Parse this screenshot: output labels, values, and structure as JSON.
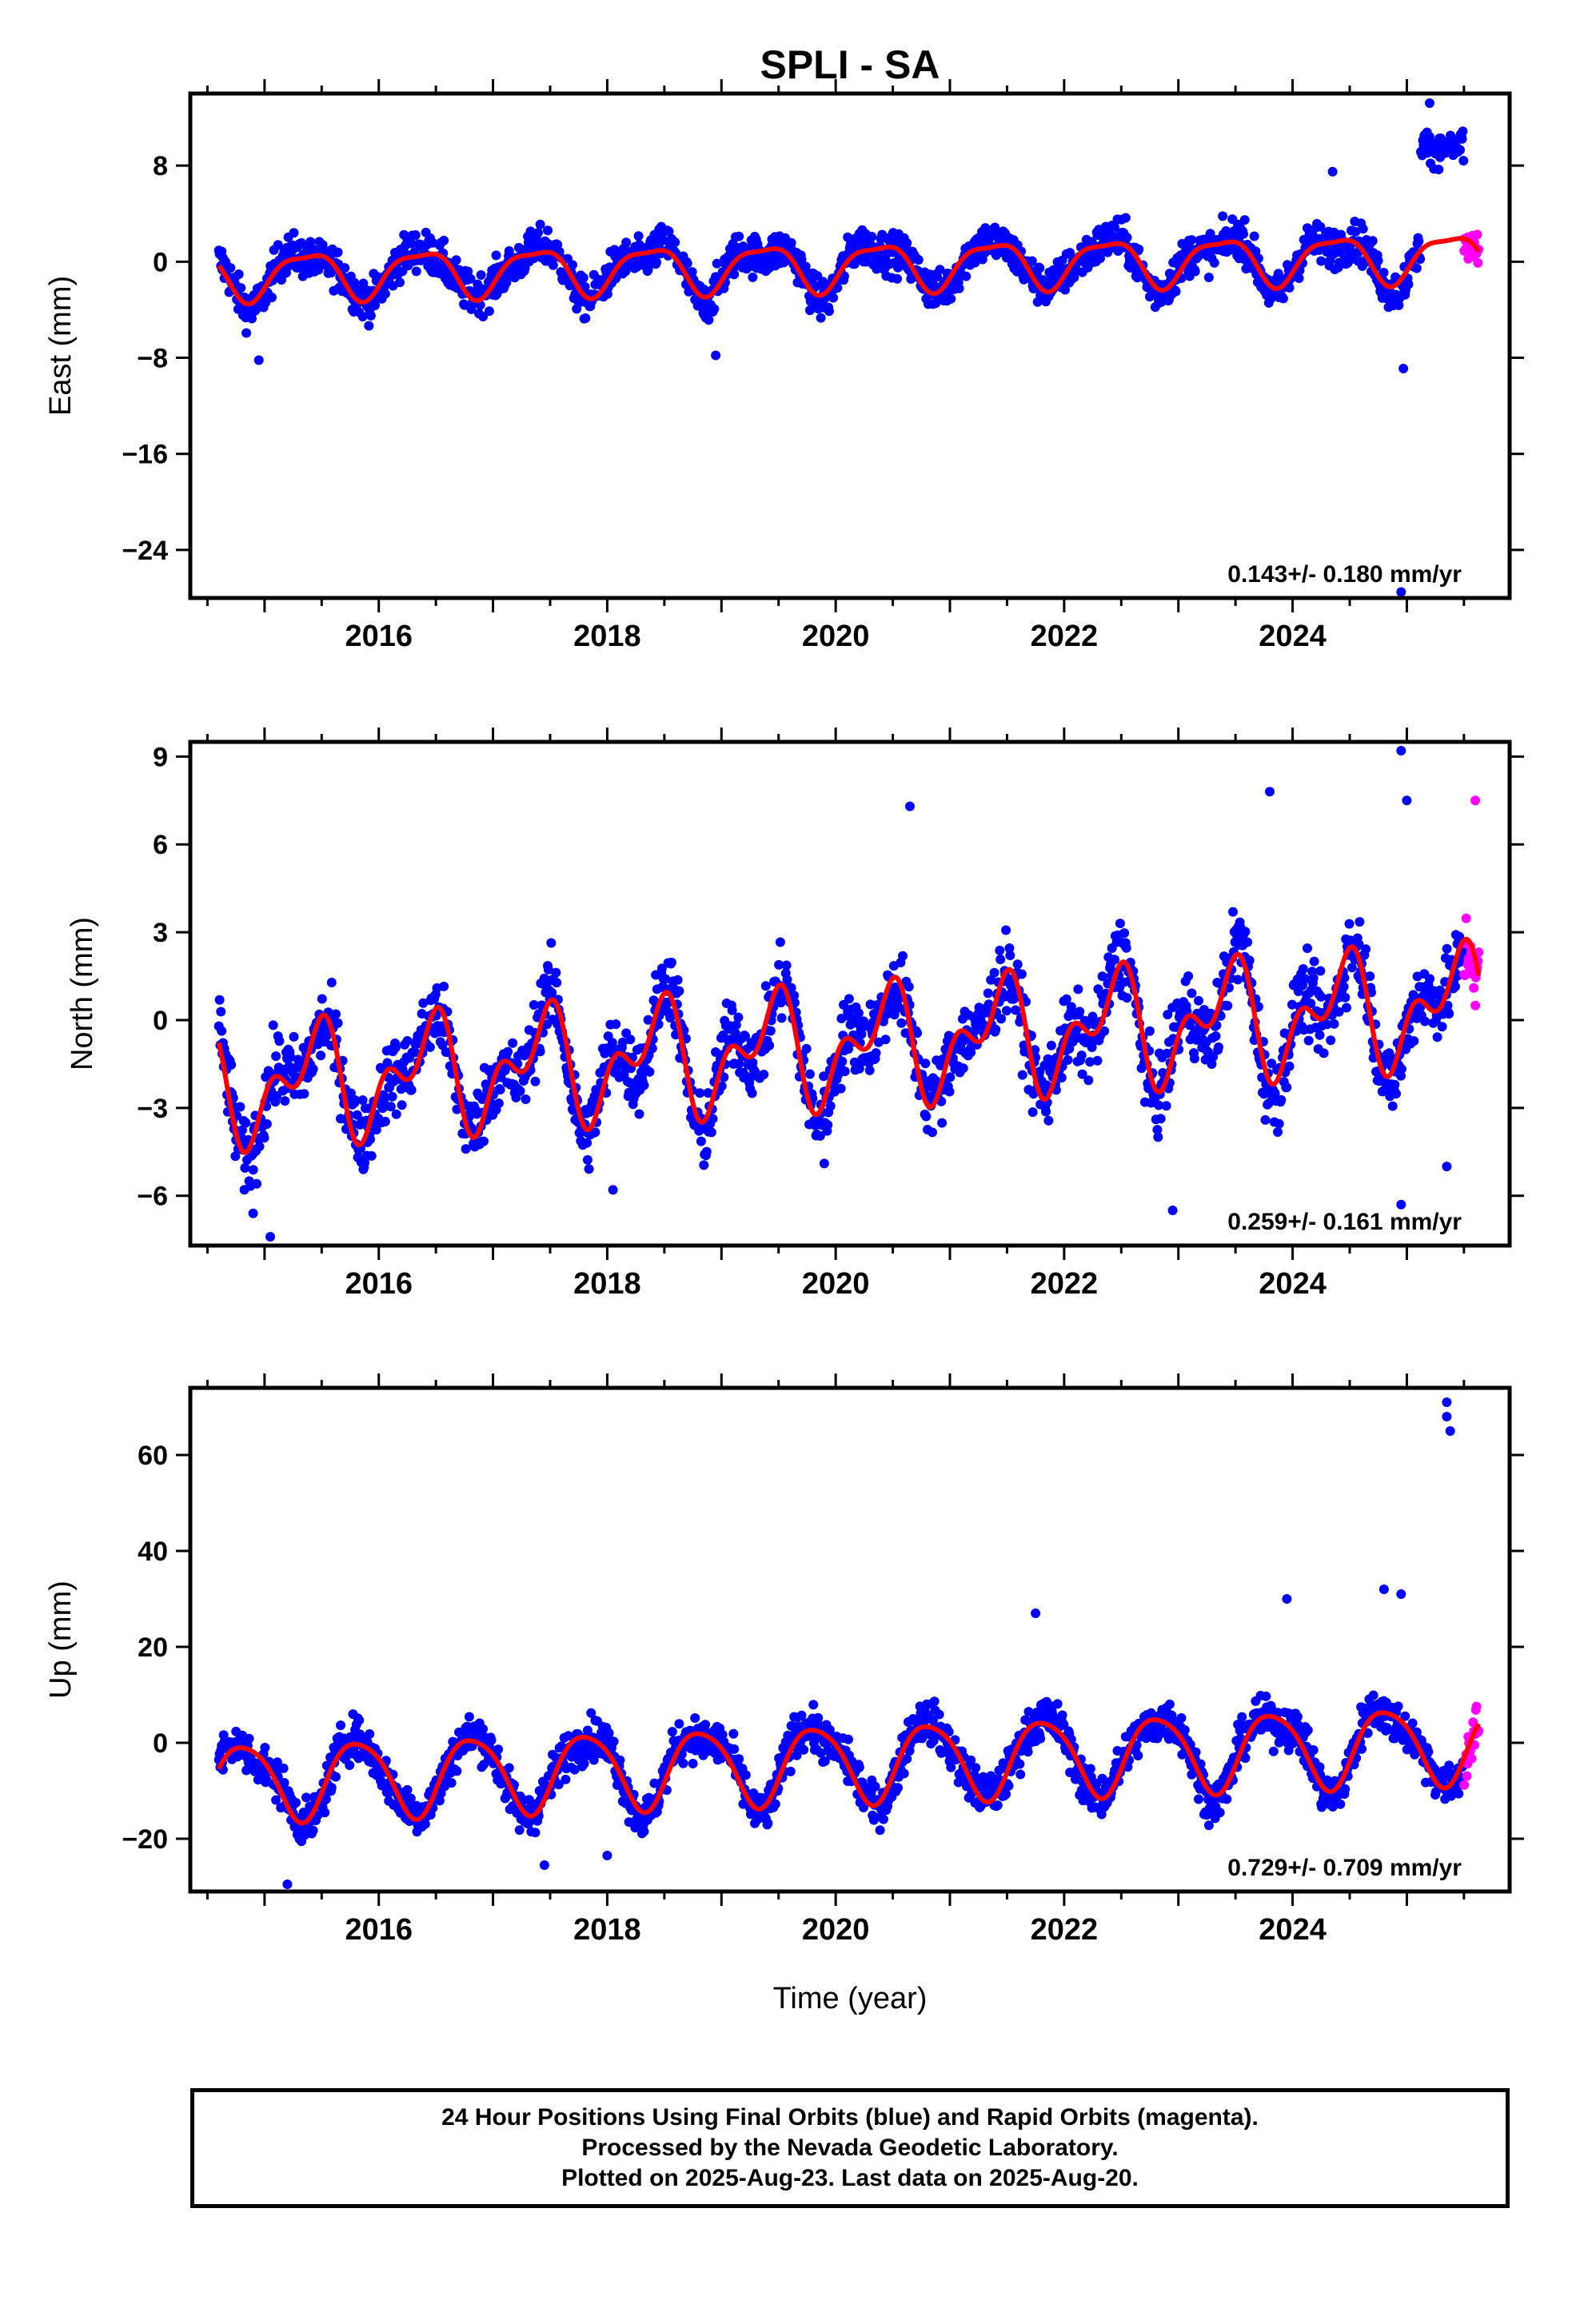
{
  "title": "SPLI - SA",
  "colors": {
    "final": "#0000ff",
    "rapid": "#ff00ff",
    "model": "#ff0000",
    "axis": "#000000"
  },
  "xaxis": {
    "label": "Time (year)",
    "range": [
      2014.35,
      2025.9
    ],
    "ticks": [
      2016,
      2018,
      2020,
      2022,
      2024
    ],
    "tick_labels": [
      "2016",
      "2018",
      "2020",
      "2022",
      "2024"
    ]
  },
  "caption": {
    "line1": "24 Hour Positions Using Final Orbits (blue) and Rapid Orbits (magenta).",
    "line2": "Processed by the Nevada Geodetic Laboratory.",
    "line3": "Plotted on 2025-Aug-23. Last data on 2025-Aug-20."
  },
  "chart_data": [
    {
      "type": "scatter",
      "ylabel": "East (mm)",
      "ylim": [
        -28,
        14
      ],
      "yticks": [
        -24,
        -16,
        -8,
        0,
        8
      ],
      "ytick_labels": [
        "−24",
        "−16",
        "−8",
        "0",
        "8"
      ],
      "rate_label": "0.143+/- 0.180 mm/yr",
      "data_start": 2014.6,
      "data_end": 2025.63,
      "rapid_start": 2025.5,
      "model": {
        "offset": -0.35,
        "rate": 0.143,
        "annual": 1.9,
        "annual_phase": 0.37,
        "semiannual": 0.55,
        "semiannual_phase": 0.1,
        "noise": 1.5
      },
      "jump": {
        "start": 2025.12,
        "value": 9.5
      },
      "outliers": [
        [
          2024.95,
          -27.5
        ],
        [
          2024.97,
          -8.9
        ],
        [
          2014.95,
          -8.2
        ],
        [
          2018.95,
          -7.8
        ],
        [
          2024.35,
          7.5
        ],
        [
          2025.2,
          13.2
        ]
      ]
    },
    {
      "type": "scatter",
      "ylabel": "North (mm)",
      "ylim": [
        -7.7,
        9.5
      ],
      "yticks": [
        -6,
        -3,
        0,
        3,
        6,
        9
      ],
      "ytick_labels": [
        "−6",
        "−3",
        "0",
        "3",
        "6",
        "9"
      ],
      "rate_label": "0.259+/- 0.161 mm/yr",
      "data_start": 2014.6,
      "data_end": 2025.63,
      "rapid_start": 2025.5,
      "model": {
        "offset": -0.9,
        "rate": 0.259,
        "annual": 1.5,
        "annual_phase": 0.42,
        "semiannual": 1.1,
        "semiannual_phase": 0.05,
        "noise": 1.15
      },
      "outliers": [
        [
          2015.05,
          -7.4
        ],
        [
          2014.9,
          -6.6
        ],
        [
          2018.05,
          -5.8
        ],
        [
          2019.9,
          -4.9
        ],
        [
          2022.95,
          -6.5
        ],
        [
          2024.95,
          -6.3
        ],
        [
          2025.35,
          -5.0
        ],
        [
          2020.65,
          7.3
        ],
        [
          2023.8,
          7.8
        ],
        [
          2024.95,
          9.2
        ],
        [
          2025.0,
          7.5
        ],
        [
          2025.6,
          7.5
        ],
        [
          2025.6,
          0.5
        ]
      ]
    },
    {
      "type": "scatter",
      "ylabel": "Up (mm)",
      "ylim": [
        -31,
        74
      ],
      "yticks": [
        -20,
        0,
        20,
        40,
        60
      ],
      "ytick_labels": [
        "−20",
        "0",
        "20",
        "40",
        "60"
      ],
      "rate_label": "0.729+/- 0.709 mm/yr",
      "data_start": 2014.6,
      "data_end": 2025.63,
      "rapid_start": 2025.5,
      "model": {
        "offset": -4.2,
        "rate": 0.729,
        "annual": 8.0,
        "annual_phase": 0.82,
        "semiannual": 1.2,
        "semiannual_phase": 0.1,
        "noise": 4.0
      },
      "outliers": [
        [
          2015.2,
          -29.5
        ],
        [
          2017.45,
          -25.5
        ],
        [
          2018.0,
          -23.5
        ],
        [
          2025.35,
          71
        ],
        [
          2025.35,
          68
        ],
        [
          2025.38,
          65
        ],
        [
          2024.8,
          32
        ],
        [
          2024.95,
          31
        ],
        [
          2023.95,
          30
        ],
        [
          2021.75,
          27
        ]
      ]
    }
  ]
}
